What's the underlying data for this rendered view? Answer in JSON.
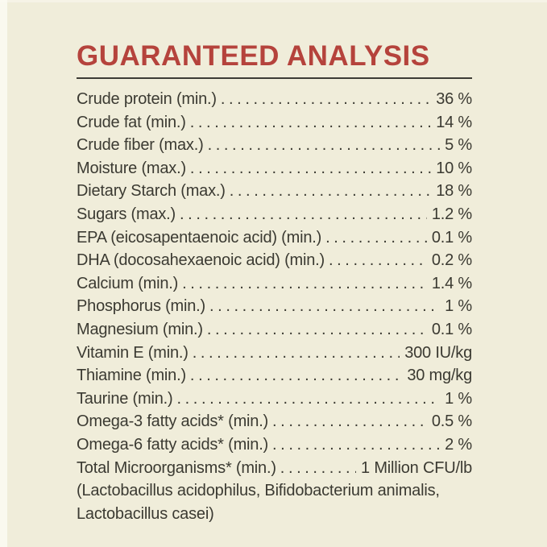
{
  "colors": {
    "background": "#f0edda",
    "title": "#b5433c",
    "text": "#3b3a32",
    "rule": "#3d3c35"
  },
  "panel": {
    "title": "GUARANTEED ANALYSIS",
    "rows": [
      {
        "label": "Crude protein (min.)",
        "value": "36 %"
      },
      {
        "label": "Crude fat (min.)",
        "value": "14 %"
      },
      {
        "label": "Crude fiber (max.)",
        "value": "5 %"
      },
      {
        "label": "Moisture (max.)",
        "value": "10 %"
      },
      {
        "label": "Dietary Starch (max.)",
        "value": "18 %"
      },
      {
        "label": "Sugars (max.)",
        "value": "1.2 %"
      },
      {
        "label": "EPA (eicosapentaenoic acid) (min.)",
        "value": "0.1 %"
      },
      {
        "label": "DHA (docosahexaenoic acid) (min.)",
        "value": "0.2 %"
      },
      {
        "label": "Calcium (min.)",
        "value": "1.4 %"
      },
      {
        "label": "Phosphorus (min.)",
        "value": "1 %"
      },
      {
        "label": "Magnesium (min.)",
        "value": "0.1 %"
      },
      {
        "label": "Vitamin E (min.)",
        "value": "300 IU/kg"
      },
      {
        "label": "Thiamine (min.)",
        "value": "30 mg/kg"
      },
      {
        "label": "Taurine (min.)",
        "value": "1 %"
      },
      {
        "label": "Omega-3 fatty acids* (min.)",
        "value": "0.5 %"
      },
      {
        "label": "Omega-6 fatty acids* (min.)",
        "value": "2 %"
      },
      {
        "label": "Total Microorganisms* (min.)",
        "value": "1 Million CFU/lb"
      }
    ],
    "footnote_lines": [
      "(Lactobacillus acidophilus, Bifidobacterium animalis,",
      "Lactobacillus casei)"
    ]
  }
}
